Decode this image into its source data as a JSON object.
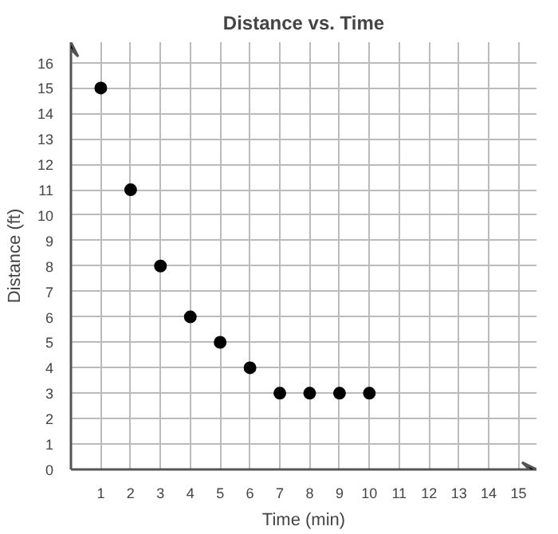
{
  "chart_data": {
    "type": "scatter",
    "title": "Distance vs. Time",
    "xlabel": "Time (min)",
    "ylabel": "Distance (ft)",
    "x": [
      1,
      2,
      3,
      4,
      5,
      6,
      7,
      8,
      9,
      10
    ],
    "series": [
      {
        "color": "#000000",
        "values": [
          15,
          11,
          8,
          6,
          5,
          4,
          3,
          3,
          3,
          3
        ]
      }
    ],
    "xlim": [
      0,
      15.6
    ],
    "ylim": [
      0,
      16.8
    ],
    "xticks": [
      {
        "value": 0,
        "label": null
      },
      1,
      2,
      3,
      4,
      5,
      6,
      7,
      8,
      9,
      10,
      11,
      12,
      13,
      14,
      15
    ],
    "yticks": [
      0,
      1,
      2,
      3,
      4,
      5,
      6,
      7,
      8,
      9,
      10,
      11,
      12,
      13,
      14,
      15,
      16
    ],
    "grid": true,
    "marker": "circle"
  }
}
